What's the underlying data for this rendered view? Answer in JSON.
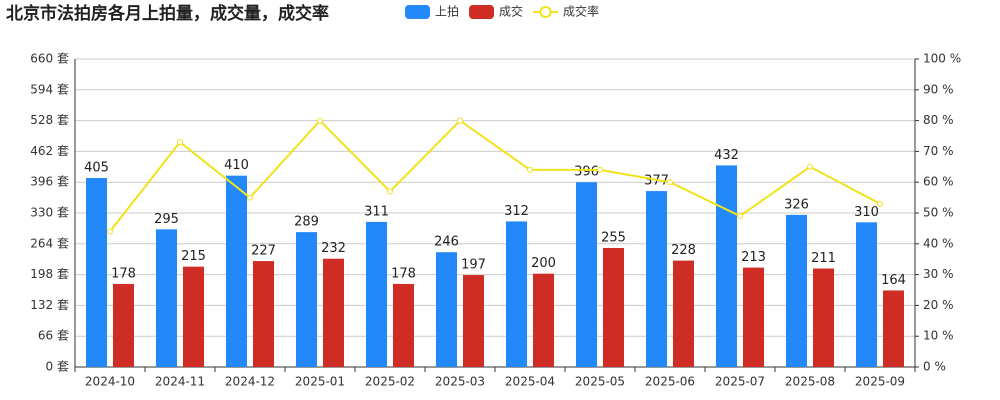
{
  "chart_data": {
    "type": "bar-line",
    "title": "北京市法拍房各月上拍量，成交量，成交率",
    "categories": [
      "2024-10",
      "2024-11",
      "2024-12",
      "2025-01",
      "2025-02",
      "2025-03",
      "2025-04",
      "2025-05",
      "2025-06",
      "2025-07",
      "2025-08",
      "2025-09"
    ],
    "series": [
      {
        "name": "上拍",
        "type": "bar",
        "color": "#2389fb",
        "values": [
          405,
          295,
          410,
          289,
          311,
          246,
          312,
          396,
          377,
          432,
          326,
          310
        ]
      },
      {
        "name": "成交",
        "type": "bar",
        "color": "#cf2c25",
        "values": [
          178,
          215,
          227,
          232,
          178,
          197,
          200,
          255,
          228,
          213,
          211,
          164
        ]
      },
      {
        "name": "成交率",
        "type": "line",
        "axis": "y2",
        "color": "#f2e21a",
        "values": [
          44,
          73,
          55,
          80,
          57,
          80,
          64,
          64,
          60,
          49,
          65,
          53
        ]
      }
    ],
    "ylim": [
      0,
      660
    ],
    "yticks": [
      {
        "value": 0,
        "label": "0 套"
      },
      {
        "value": 66,
        "label": "66 套"
      },
      {
        "value": 132,
        "label": "132 套"
      },
      {
        "value": 198,
        "label": "198 套"
      },
      {
        "value": 264,
        "label": "264 套"
      },
      {
        "value": 330,
        "label": "330 套"
      },
      {
        "value": 396,
        "label": "396 套"
      },
      {
        "value": 462,
        "label": "462 套"
      },
      {
        "value": 528,
        "label": "528 套"
      },
      {
        "value": 594,
        "label": "594 套"
      },
      {
        "value": 660,
        "label": "660 套"
      }
    ],
    "y2lim": [
      0,
      100
    ],
    "y2ticks": [
      {
        "value": 0,
        "label": "0 %"
      },
      {
        "value": 10,
        "label": "10 %"
      },
      {
        "value": 20,
        "label": "20 %"
      },
      {
        "value": 30,
        "label": "30 %"
      },
      {
        "value": 40,
        "label": "40 %"
      },
      {
        "value": 50,
        "label": "50 %"
      },
      {
        "value": 60,
        "label": "60 %"
      },
      {
        "value": 70,
        "label": "70 %"
      },
      {
        "value": 80,
        "label": "80 %"
      },
      {
        "value": 90,
        "label": "90 %"
      },
      {
        "value": 100,
        "label": "100 %"
      }
    ],
    "grid": true
  }
}
